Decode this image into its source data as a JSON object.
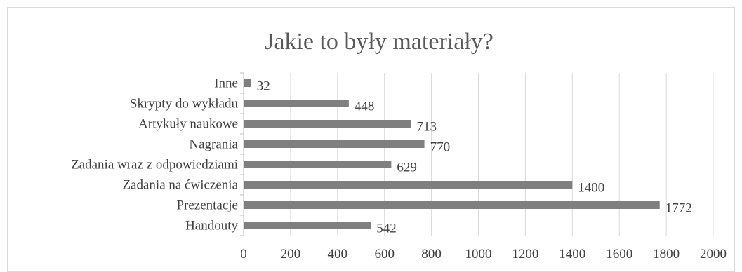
{
  "chart_data": {
    "type": "bar",
    "orientation": "horizontal",
    "title": "Jakie to były materiały?",
    "categories": [
      "Handouty",
      "Prezentacje",
      "Zadania na ćwiczenia",
      "Zadania wraz z odpowiedziami",
      "Nagrania",
      "Artykuły naukowe",
      "Skrypty do wykładu",
      "Inne"
    ],
    "values": [
      542,
      1772,
      1400,
      629,
      770,
      713,
      448,
      32
    ],
    "xlim": [
      0,
      2000
    ],
    "xticks": [
      0,
      200,
      400,
      600,
      800,
      1000,
      1200,
      1400,
      1600,
      1800,
      2000
    ],
    "grid": "vertical",
    "legend": "none",
    "data_labels": true,
    "colors": {
      "bar": "#7f7f7f",
      "grid": "#d9d9d9",
      "axis": "#bfbfbf",
      "text": "#404040",
      "title": "#595959"
    }
  }
}
